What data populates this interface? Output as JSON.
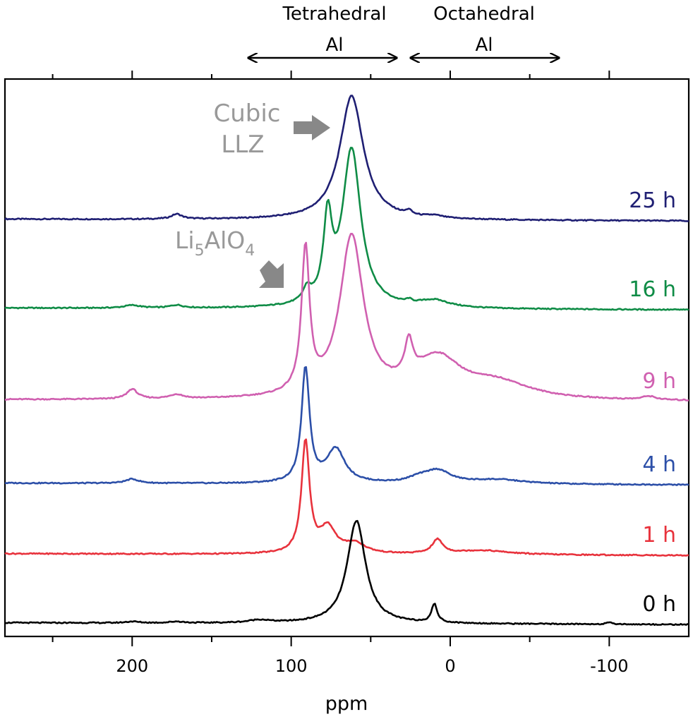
{
  "chart_data": {
    "type": "line",
    "title": "",
    "xlabel": "ppm",
    "ylabel": "",
    "xlim": [
      280,
      -150
    ],
    "x_reversed": true,
    "xticks": [
      200,
      100,
      0,
      -100
    ],
    "xtick_labels": [
      "200",
      "100",
      "0",
      "-100"
    ],
    "minor_xticks": [
      250,
      150,
      50,
      -50
    ],
    "grid": false,
    "legend": "none",
    "series": [
      {
        "name": "25 h",
        "color": "#1f1f73",
        "baseline": 312,
        "peaks": [
          {
            "center": 62,
            "height": 176,
            "width": 9
          },
          {
            "center": 172,
            "height": 7,
            "width": 4
          },
          {
            "center": 26,
            "height": 6,
            "width": 2
          },
          {
            "center": 10,
            "height": 3,
            "width": 6
          }
        ]
      },
      {
        "name": "16 h",
        "color": "#0f8c46",
        "baseline": 438,
        "peaks": [
          {
            "center": 62,
            "height": 224,
            "width": 7
          },
          {
            "center": 77,
            "height": 114,
            "width": 3.2
          },
          {
            "center": 90,
            "height": 18,
            "width": 3
          },
          {
            "center": 200,
            "height": 4,
            "width": 6
          },
          {
            "center": 172,
            "height": 4,
            "width": 5
          },
          {
            "center": 26,
            "height": 4,
            "width": 2
          },
          {
            "center": 10,
            "height": 10,
            "width": 12
          }
        ]
      },
      {
        "name": "9 h",
        "color": "#d060b0",
        "baseline": 568,
        "peaks": [
          {
            "center": 91,
            "height": 202,
            "width": 3
          },
          {
            "center": 62,
            "height": 228,
            "width": 9
          },
          {
            "center": 26,
            "height": 50,
            "width": 3
          },
          {
            "center": 8,
            "height": 55,
            "width": 18
          },
          {
            "center": -30,
            "height": 22,
            "width": 25
          },
          {
            "center": 200,
            "height": 14,
            "width": 4
          },
          {
            "center": 172,
            "height": 6,
            "width": 5
          },
          {
            "center": -125,
            "height": 5,
            "width": 5
          }
        ]
      },
      {
        "name": "4 h",
        "color": "#2c4fa8",
        "baseline": 686,
        "peaks": [
          {
            "center": 91,
            "height": 162,
            "width": 3
          },
          {
            "center": 72,
            "height": 48,
            "width": 7
          },
          {
            "center": 200,
            "height": 6,
            "width": 5
          },
          {
            "center": 8,
            "height": 18,
            "width": 10
          },
          {
            "center": -30,
            "height": 6,
            "width": 20
          },
          {
            "center": 20,
            "height": 6,
            "width": 8
          }
        ]
      },
      {
        "name": "1 h",
        "color": "#e8323c",
        "baseline": 786,
        "peaks": [
          {
            "center": 91,
            "height": 158,
            "width": 3
          },
          {
            "center": 77,
            "height": 36,
            "width": 6
          },
          {
            "center": 60,
            "height": 14,
            "width": 8
          },
          {
            "center": 8,
            "height": 20,
            "width": 4
          },
          {
            "center": -20,
            "height": 6,
            "width": 20
          }
        ]
      },
      {
        "name": "0 h",
        "color": "#000000",
        "baseline": 884,
        "peaks": [
          {
            "center": 59,
            "height": 146,
            "width": 7
          },
          {
            "center": 10,
            "height": 26,
            "width": 2.2
          },
          {
            "center": 200,
            "height": 2,
            "width": 5
          },
          {
            "center": 172,
            "height": 2,
            "width": 5
          },
          {
            "center": 120,
            "height": 4,
            "width": 8
          },
          {
            "center": -100,
            "height": 2,
            "width": 3
          }
        ]
      }
    ],
    "annotations": [
      {
        "text": "Tetrahedral",
        "sub": "Al",
        "from": 123,
        "to": 31
      },
      {
        "text": "Octahedral",
        "sub": "Al",
        "from": 21,
        "to": -70
      }
    ],
    "callouts": [
      {
        "lines": [
          "Cubic",
          "LLZ"
        ],
        "color": "#999999"
      },
      {
        "main": "Li",
        "sub1": "5",
        "mid": "AlO",
        "sub2": "4",
        "color": "#999999"
      }
    ]
  }
}
